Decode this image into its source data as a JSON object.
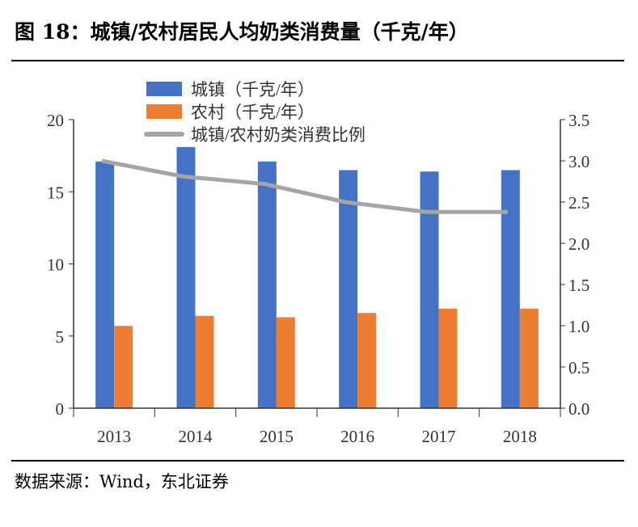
{
  "title": "图 18：城镇/农村居民人均奶类消费量（千克/年）",
  "source": "数据来源：Wind，东北证券",
  "chart_data": {
    "type": "bar",
    "categories": [
      "2013",
      "2014",
      "2015",
      "2016",
      "2017",
      "2018"
    ],
    "series": [
      {
        "name": "城镇（千克/年）",
        "type": "bar",
        "axis": "left",
        "color": "#4472C4",
        "values": [
          17.1,
          18.1,
          17.1,
          16.5,
          16.4,
          16.5
        ]
      },
      {
        "name": "农村（千克/年）",
        "type": "bar",
        "axis": "left",
        "color": "#ED7D31",
        "values": [
          5.7,
          6.4,
          6.3,
          6.6,
          6.9,
          6.9
        ]
      },
      {
        "name": "城镇/农村奶类消费比例",
        "type": "line",
        "axis": "right",
        "color": "#A5A5A5",
        "values": [
          3.0,
          2.81,
          2.72,
          2.5,
          2.38,
          2.38
        ]
      }
    ],
    "yleft": {
      "lim": [
        0,
        20
      ],
      "ticks": [
        "0",
        "5",
        "10",
        "15",
        "20"
      ]
    },
    "yright": {
      "lim": [
        0,
        3.5
      ],
      "ticks": [
        "0.0",
        "0.5",
        "1.0",
        "1.5",
        "2.0",
        "2.5",
        "3.0",
        "3.5"
      ]
    },
    "legend": "top",
    "grid": false
  }
}
